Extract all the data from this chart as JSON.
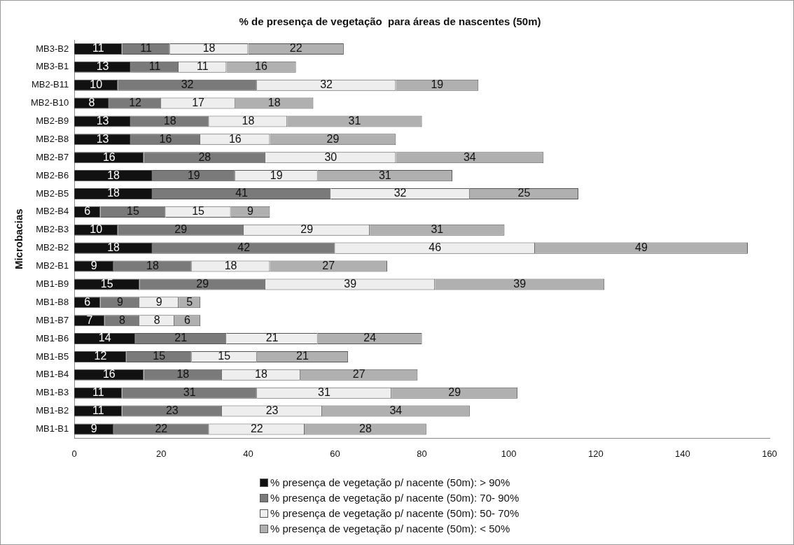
{
  "chart_data": {
    "type": "bar",
    "orientation": "horizontal",
    "stacked": true,
    "title": "% de presença de vegetação  para áreas de nascentes (50m)",
    "ylabel": "Microbacias",
    "categories": [
      "MB3-B2",
      "MB3-B1",
      "MB2-B11",
      "MB2-B10",
      "MB2-B9",
      "MB2-B8",
      "MB2-B7",
      "MB2-B6",
      "MB2-B5",
      "MB2-B4",
      "MB2-B3",
      "MB2-B2",
      "MB2-B1",
      "MB1-B9",
      "MB1-B8",
      "MB1-B7",
      "MB1-B6",
      "MB1-B5",
      "MB1-B4",
      "MB1-B3",
      "MB1-B2",
      "MB1-B1"
    ],
    "series": [
      {
        "name": "% presença de vegetação p/ nacente (50m): > 90%",
        "color": "#111111",
        "values": [
          11,
          13,
          10,
          8,
          13,
          13,
          16,
          18,
          18,
          6,
          10,
          18,
          9,
          15,
          6,
          7,
          14,
          12,
          16,
          11,
          11,
          9
        ]
      },
      {
        "name": "% presença de vegetação p/ nacente (50m): 70- 90%",
        "color": "#7a7a7a",
        "values": [
          11,
          11,
          32,
          12,
          18,
          16,
          28,
          19,
          41,
          15,
          29,
          42,
          18,
          29,
          9,
          8,
          21,
          15,
          18,
          31,
          23,
          22
        ]
      },
      {
        "name": "% presença de vegetação p/ nacente (50m): 50- 70%",
        "color": "#eeeeee",
        "values": [
          18,
          11,
          32,
          17,
          18,
          16,
          30,
          19,
          32,
          15,
          29,
          46,
          18,
          39,
          9,
          8,
          21,
          15,
          18,
          31,
          23,
          22
        ]
      },
      {
        "name": "% presença de vegetação p/ nacente (50m): < 50%",
        "color": "#b0b0b0",
        "values": [
          22,
          16,
          19,
          18,
          31,
          29,
          34,
          31,
          25,
          9,
          31,
          49,
          27,
          39,
          5,
          6,
          24,
          21,
          27,
          29,
          34,
          28
        ]
      }
    ],
    "xlim": [
      0,
      160
    ],
    "xticks": [
      0,
      20,
      40,
      60,
      80,
      100,
      120,
      140,
      160
    ],
    "data_labels": true,
    "legend": "bottom",
    "grid": false
  }
}
